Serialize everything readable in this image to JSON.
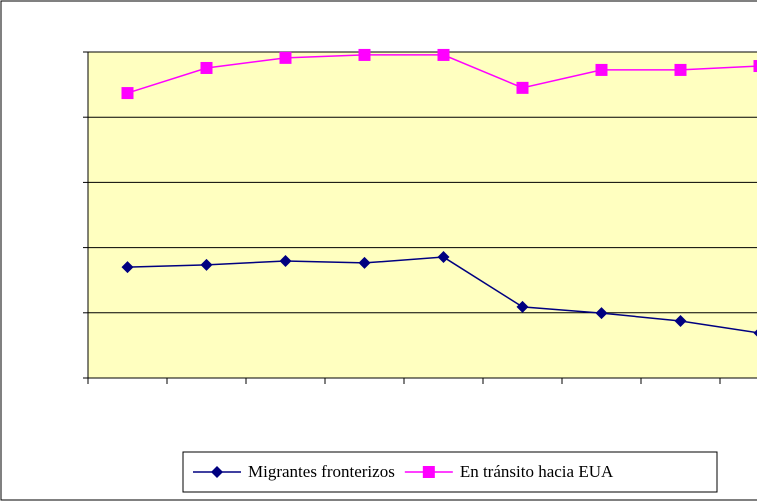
{
  "chart_data": {
    "type": "line",
    "categories": [
      null,
      null,
      null,
      null,
      null,
      null,
      null,
      null,
      null
    ],
    "series": [
      {
        "name": "Migrantes fronterizos",
        "color": "#000080",
        "marker": "diamond",
        "values": [
          34.0,
          34.7,
          35.9,
          35.3,
          37.1,
          21.8,
          19.9,
          17.5,
          13.8
        ]
      },
      {
        "name": "En tránsito hacia EUA",
        "color": "#ff00ff",
        "marker": "square",
        "values": [
          87.4,
          95.1,
          98.2,
          99.1,
          99.1,
          89.0,
          94.5,
          94.5,
          95.7
        ]
      }
    ],
    "ylim": [
      0,
      100
    ],
    "yticks": [
      0,
      20,
      40,
      60,
      80,
      100
    ],
    "grid": true,
    "plot_background": "#ffffc0",
    "legend": "bottom"
  }
}
